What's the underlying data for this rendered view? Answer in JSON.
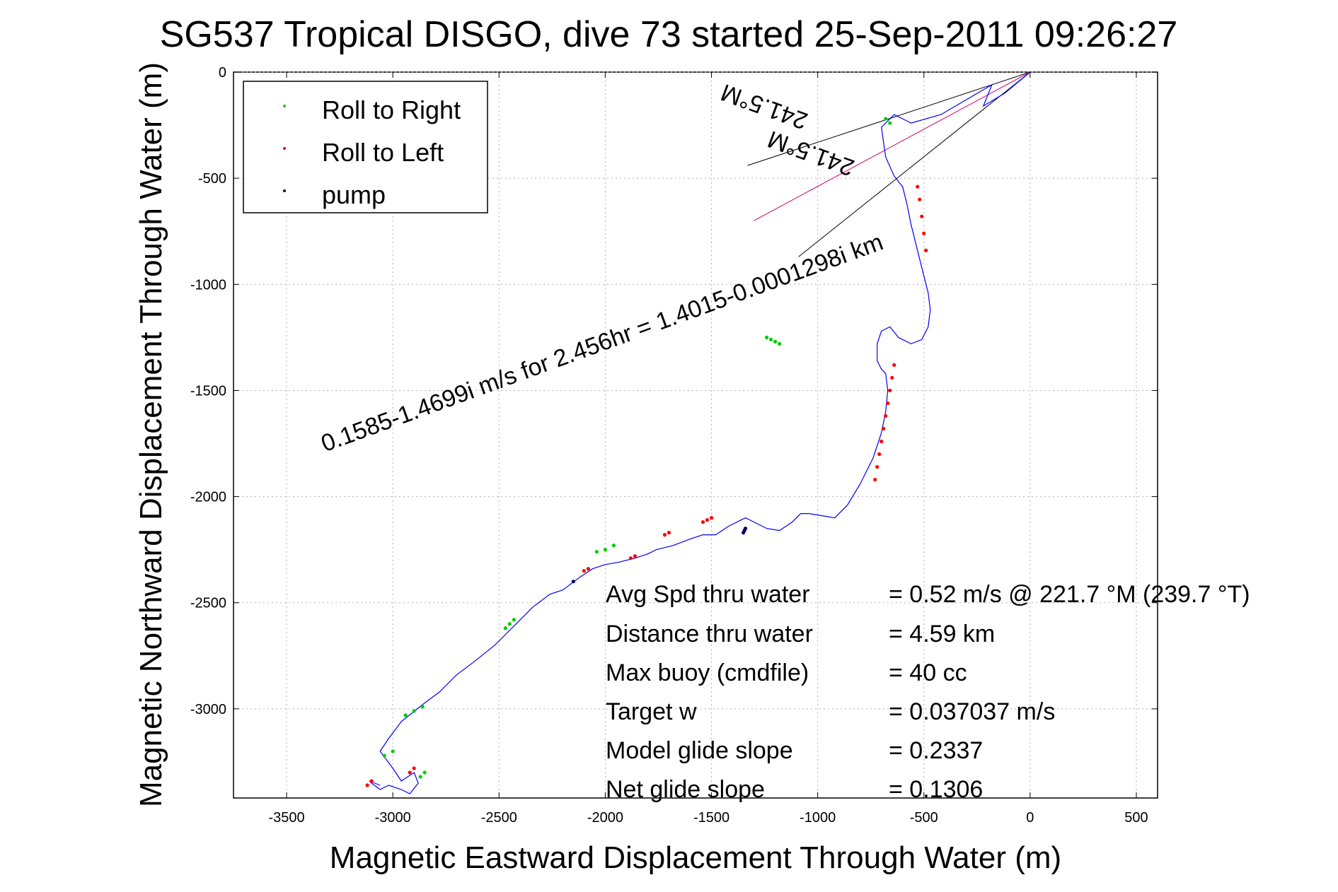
{
  "chart_data": {
    "type": "scatter",
    "title": "SG537 Tropical DISGO, dive 73 started 25-Sep-2011 09:26:27",
    "xlabel": "Magnetic Eastward Displacement Through Water (m)",
    "ylabel": "Magnetic Northward Displacement Through Water (m)",
    "xlim": [
      -3750,
      600
    ],
    "ylim": [
      -3420,
      0
    ],
    "xticks": [
      -3500,
      -3000,
      -2500,
      -2000,
      -1500,
      -1000,
      -500,
      0,
      500
    ],
    "yticks": [
      0,
      -500,
      -1000,
      -1500,
      -2000,
      -2500,
      -3000
    ],
    "xtick_labels": [
      "-3500",
      "-3000",
      "-2500",
      "-2000",
      "-1500",
      "-1000",
      "-500",
      "0",
      "500"
    ],
    "ytick_labels": [
      "0",
      "-500",
      "-1000",
      "-1500",
      "-2000",
      "-2500",
      "-3000"
    ],
    "grid": true,
    "legend": {
      "placement": "top-left",
      "entries": [
        {
          "label": "Roll to Right",
          "color": "#00cc00"
        },
        {
          "label": "Roll to Left",
          "color": "#ff0000"
        },
        {
          "label": "pump",
          "color": "#000066"
        }
      ]
    },
    "track": {
      "name": "",
      "color": "#0000ff",
      "x": [
        0,
        -120,
        -220,
        -180,
        -300,
        -420,
        -560,
        -640,
        -700,
        -680,
        -640,
        -600,
        -580,
        -560,
        -540,
        -520,
        -500,
        -480,
        -470,
        -480,
        -510,
        -560,
        -620,
        -660,
        -700,
        -720,
        -720,
        -700,
        -680,
        -670,
        -680,
        -700,
        -740,
        -800,
        -860,
        -920,
        -980,
        -1040,
        -1080,
        -1120,
        -1180,
        -1240,
        -1300,
        -1340,
        -1360,
        -1420,
        -1480,
        -1540,
        -1600,
        -1680,
        -1760,
        -1800,
        -1860,
        -1940,
        -2000,
        -2060,
        -2120,
        -2160,
        -2200,
        -2260,
        -2340,
        -2420,
        -2520,
        -2620,
        -2700,
        -2780,
        -2860,
        -2960,
        -3020,
        -3060,
        -3000,
        -2960,
        -2900,
        -2880,
        -2920,
        -2960,
        -3020,
        -3060,
        -3100,
        -3110,
        -3060
      ],
      "y": [
        0,
        -100,
        -160,
        -60,
        -130,
        -200,
        -240,
        -200,
        -260,
        -400,
        -490,
        -540,
        -620,
        -720,
        -800,
        -880,
        -960,
        -1040,
        -1120,
        -1200,
        -1260,
        -1280,
        -1250,
        -1200,
        -1220,
        -1280,
        -1360,
        -1400,
        -1420,
        -1500,
        -1600,
        -1700,
        -1820,
        -1940,
        -2040,
        -2100,
        -2090,
        -2080,
        -2080,
        -2120,
        -2160,
        -2150,
        -2120,
        -2100,
        -2110,
        -2140,
        -2180,
        -2180,
        -2200,
        -2230,
        -2250,
        -2270,
        -2290,
        -2310,
        -2320,
        -2340,
        -2380,
        -2410,
        -2440,
        -2460,
        -2520,
        -2600,
        -2700,
        -2780,
        -2840,
        -2920,
        -2980,
        -3060,
        -3140,
        -3200,
        -3280,
        -3340,
        -3300,
        -3350,
        -3400,
        -3380,
        -3360,
        -3380,
        -3350,
        -3340,
        -3360
      ]
    },
    "points": {
      "roll_right": {
        "x": [
          -680,
          -660,
          -1240,
          -1220,
          -1200,
          -1180,
          -1960,
          -2000,
          -2040,
          -2430,
          -2450,
          -2470,
          -2860,
          -2900,
          -2940,
          -3000,
          -3040,
          -2850,
          -2870
        ],
        "y": [
          -220,
          -240,
          -1250,
          -1260,
          -1270,
          -1280,
          -2230,
          -2250,
          -2260,
          -2580,
          -2600,
          -2620,
          -2990,
          -3010,
          -3030,
          -3200,
          -3220,
          -3300,
          -3320
        ]
      },
      "roll_left": {
        "x": [
          -530,
          -520,
          -510,
          -500,
          -490,
          -640,
          -650,
          -660,
          -670,
          -680,
          -690,
          -700,
          -710,
          -720,
          -730,
          -1500,
          -1520,
          -1540,
          -1700,
          -1720,
          -1860,
          -1880,
          -2080,
          -2100,
          -3100,
          -3120,
          -2900,
          -2920
        ],
        "y": [
          -540,
          -600,
          -680,
          -760,
          -840,
          -1380,
          -1440,
          -1500,
          -1560,
          -1620,
          -1680,
          -1740,
          -1800,
          -1860,
          -1920,
          -2100,
          -2110,
          -2120,
          -2170,
          -2180,
          -2280,
          -2290,
          -2340,
          -2350,
          -3340,
          -3360,
          -3280,
          -3300
        ]
      },
      "pump": {
        "x": [
          -1340,
          -1345,
          -1350,
          -2150
        ],
        "y": [
          -2150,
          -2160,
          -2170,
          -2400
        ]
      }
    },
    "wedge_lines": [
      {
        "x": [
          0,
          -1330
        ],
        "y": [
          0,
          -440
        ]
      },
      {
        "x": [
          0,
          -1090
        ],
        "y": [
          0,
          -870
        ]
      }
    ],
    "current_line": {
      "x": [
        0,
        -1300
      ],
      "y": [
        0,
        -700
      ]
    },
    "annotations": [
      {
        "text": "241.5°M ",
        "x": -1040,
        "y": -200,
        "angle_deg": 200
      },
      {
        "text": "0.1585-1.4699i m/s for 2.456hr = 1.4015-0.0001298i km",
        "x": -3320,
        "y": -1790,
        "angle_deg": -20
      },
      {
        "text": "241.5°M",
        "x": -820,
        "y": -420,
        "angle_deg": 200
      }
    ],
    "stats": [
      {
        "label": "Avg Spd thru water",
        "value": "=  0.52 m/s @ 221.7 °M (239.7 °T)"
      },
      {
        "label": "Distance thru water",
        "value": "=  4.59 km"
      },
      {
        "label": "Max buoy (cmdfile)",
        "value": "= 40 cc"
      },
      {
        "label": "Target w",
        "value": "= 0.037037 m/s"
      },
      {
        "label": "Model glide slope",
        "value": "= 0.2337"
      },
      {
        "label": "Net glide slope",
        "value": "= 0.1306"
      }
    ]
  }
}
